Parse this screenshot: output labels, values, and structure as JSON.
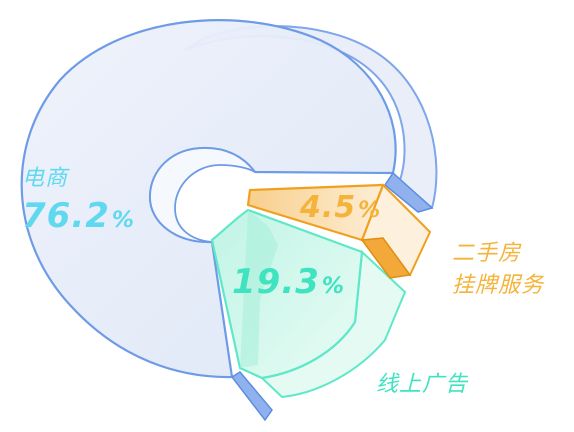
{
  "chart_data": {
    "type": "pie",
    "style": "3d-donut",
    "categories": [
      "电商",
      "线上广告",
      "二手房挂牌服务"
    ],
    "values": [
      76.2,
      19.3,
      4.5
    ],
    "unit": "%",
    "slices": [
      {
        "name": "电商",
        "value": "76.2",
        "color": "#5b8fe0",
        "fill": "#e5ebf7"
      },
      {
        "name": "线上广告",
        "value": "19.3",
        "color": "#3fe3c0",
        "fill": "#d8f7ee"
      },
      {
        "name": "二手房挂牌服务",
        "value": "4.5",
        "color": "#f0a020",
        "fill": "#fbe3bf"
      }
    ],
    "labels": [
      {
        "name_lines": [
          "电商"
        ],
        "value": "76.2",
        "percent_sign": "%",
        "color": "#5fd8f0"
      },
      {
        "name_lines": [
          "线上广告"
        ],
        "value": "19.3",
        "percent_sign": "%",
        "color": "#3fe3c0"
      },
      {
        "name_lines": [
          "二手房",
          "挂牌服务"
        ],
        "value": "4.5",
        "percent_sign": "%",
        "color": "#f5b33a"
      }
    ]
  }
}
